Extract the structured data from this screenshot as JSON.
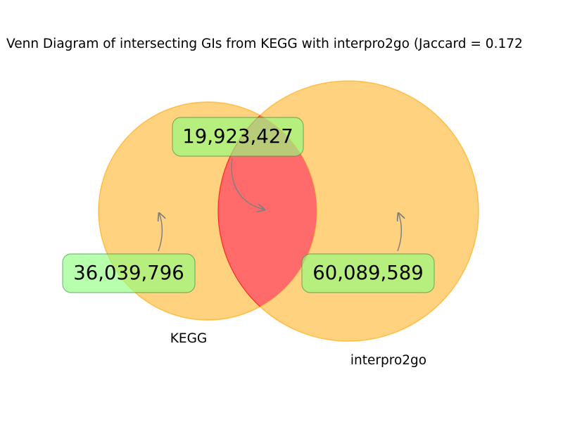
{
  "title": "Venn Diagram of intersecting GIs from KEGG with interpro2go (Jaccard = 0.172",
  "sets": {
    "left": {
      "label": "KEGG",
      "only_count": "36,039,796",
      "color": "#ffa500"
    },
    "right": {
      "label": "interpro2go",
      "only_count": "60,089,589",
      "color": "#ffa500"
    }
  },
  "intersection": {
    "count": "19,923,427",
    "color": "#ff0000"
  },
  "callout_colors": {
    "box_fill": "#90ff80",
    "box_stroke": "#409040",
    "arrow": "#808080"
  }
}
